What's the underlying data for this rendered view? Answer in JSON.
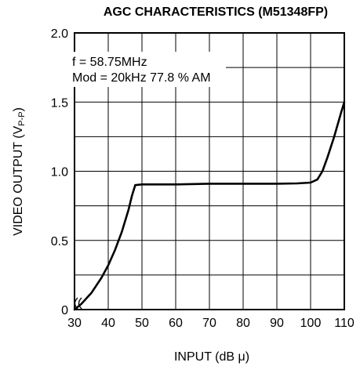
{
  "chart_data": {
    "type": "line",
    "title": "AGC CHARACTERISTICS (M51348FP)",
    "xlabel": "INPUT (dB μ)",
    "ylabel": "VIDEO OUTPUT (VP-P)",
    "ylabel_main": "VIDEO OUTPUT (V",
    "ylabel_sub": "P-P",
    "ylabel_close": ")",
    "xlim": [
      30,
      110
    ],
    "ylim": [
      0,
      2.0
    ],
    "x_ticks": [
      30,
      40,
      50,
      60,
      70,
      80,
      90,
      100,
      110
    ],
    "x_tick_labels": [
      "30",
      "40",
      "50",
      "60",
      "70",
      "80",
      "90",
      "100",
      "110"
    ],
    "y_ticks": [
      0,
      0.5,
      1.0,
      1.5,
      2.0
    ],
    "y_tick_labels": [
      "0",
      "0.5",
      "1.0",
      "1.5",
      "2.0"
    ],
    "grid": true,
    "annotations": [
      "f = 58.75MHz",
      "Mod = 20kHz  77.8 %  AM"
    ],
    "series": [
      {
        "x": [
          30,
          32,
          35,
          38,
          40,
          42,
          44,
          46,
          47,
          48,
          50,
          60,
          70,
          80,
          90,
          96,
          100,
          102,
          103.5,
          105,
          107,
          109,
          110
        ],
        "y": [
          0,
          0.04,
          0.12,
          0.23,
          0.32,
          0.43,
          0.56,
          0.72,
          0.82,
          0.9,
          0.905,
          0.905,
          0.91,
          0.91,
          0.91,
          0.912,
          0.918,
          0.94,
          1.0,
          1.1,
          1.25,
          1.42,
          1.5
        ]
      }
    ]
  }
}
